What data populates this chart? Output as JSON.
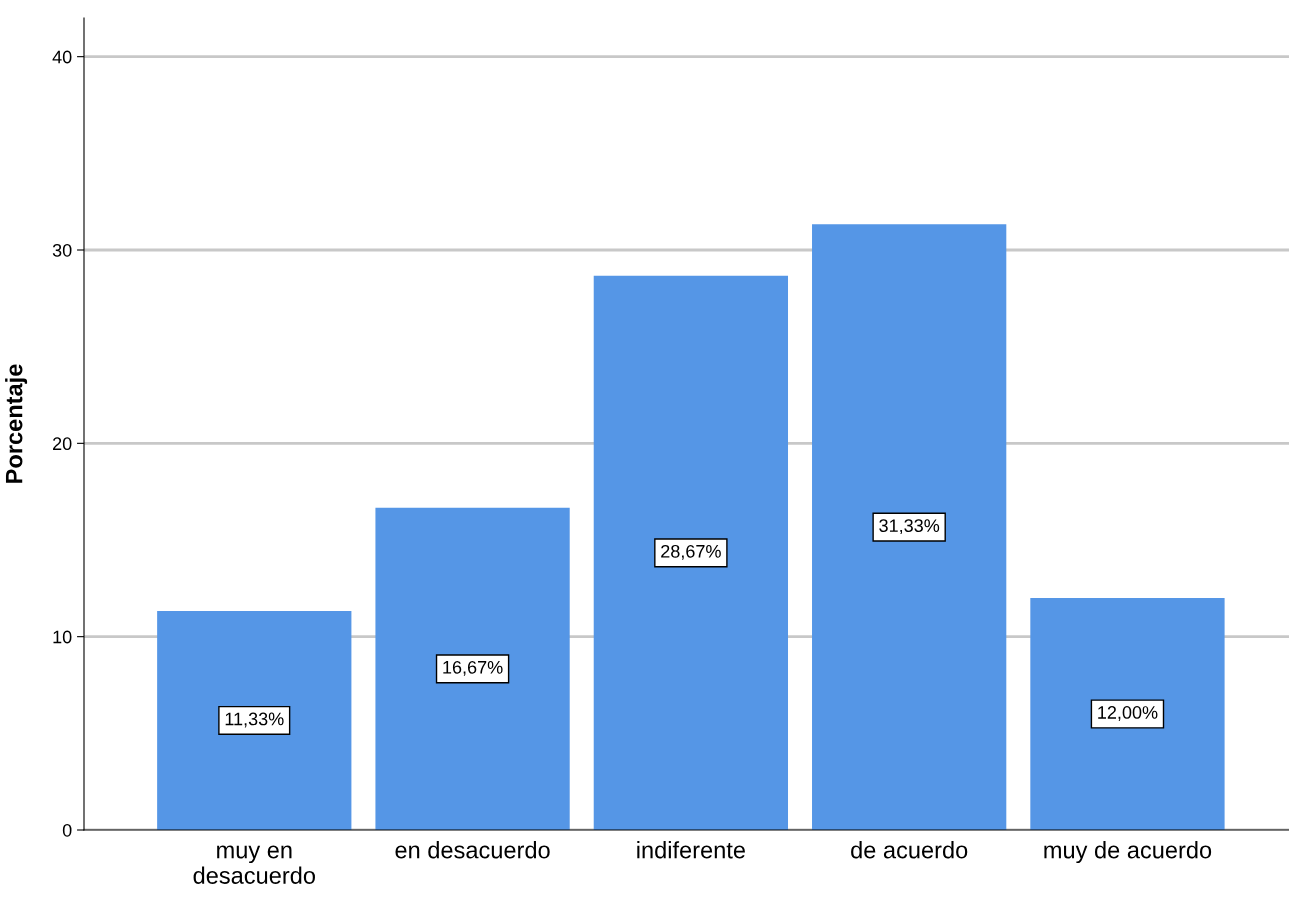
{
  "chart_data": {
    "type": "bar",
    "ylabel": "Porcentaje",
    "categories": [
      "muy en\ndesacuerdo",
      "en desacuerdo",
      "indiferente",
      "de acuerdo",
      "muy de acuerdo"
    ],
    "values": [
      11.33,
      16.67,
      28.67,
      31.33,
      12.0
    ],
    "value_labels": [
      "11,33%",
      "16,67%",
      "28,67%",
      "31,33%",
      "12,00%"
    ],
    "color": "#5596e6",
    "ylim": [
      0,
      42
    ],
    "yticks": [
      0,
      10,
      20,
      30,
      40
    ],
    "grid": "y",
    "legend": false
  }
}
